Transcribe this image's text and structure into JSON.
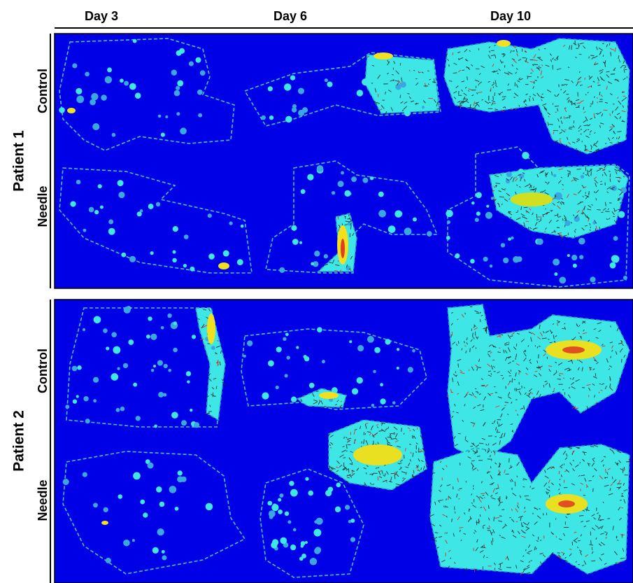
{
  "column_headers": [
    "Day 3",
    "Day 6",
    "Day 10"
  ],
  "panels": [
    {
      "patient": "Patient 1",
      "rows": [
        "Control",
        "Needle"
      ]
    },
    {
      "patient": "Patient 2",
      "rows": [
        "Control",
        "Needle"
      ]
    }
  ]
}
